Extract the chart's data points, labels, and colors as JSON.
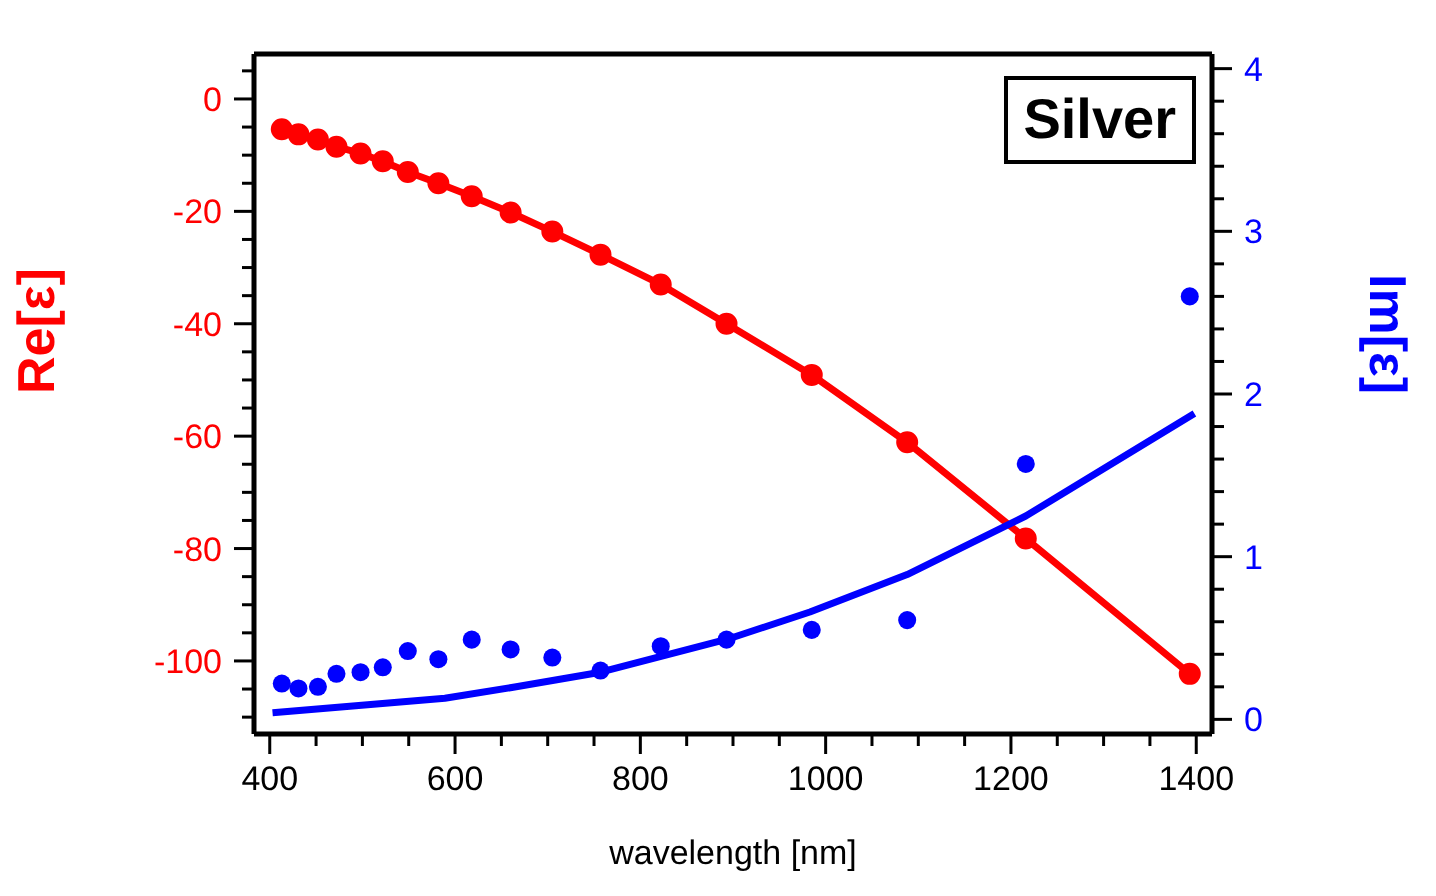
{
  "chart_data": {
    "type": "line",
    "xlabel": "wavelength [nm]",
    "ylabel": "Re[ε]",
    "y2label": "Im[ε]",
    "annotations": [
      "Silver"
    ],
    "xlim": [
      383,
      1417
    ],
    "ylim": [
      -113,
      8
    ],
    "y2lim": [
      -0.09,
      4.09
    ],
    "xticks": [
      400,
      {
        "value": 450,
        "label": null
      },
      {
        "value": 500,
        "label": null
      },
      {
        "value": 550,
        "label": null
      },
      600,
      {
        "value": 650,
        "label": null
      },
      {
        "value": 700,
        "label": null
      },
      {
        "value": 750,
        "label": null
      },
      800,
      {
        "value": 850,
        "label": null
      },
      {
        "value": 900,
        "label": null
      },
      {
        "value": 950,
        "label": null
      },
      1000,
      {
        "value": 1050,
        "label": null
      },
      {
        "value": 1100,
        "label": null
      },
      {
        "value": 1150,
        "label": null
      },
      1200,
      {
        "value": 1250,
        "label": null
      },
      {
        "value": 1300,
        "label": null
      },
      {
        "value": 1350,
        "label": null
      },
      1400
    ],
    "yticks": [
      {
        "value": 5,
        "label": null
      },
      0,
      {
        "value": -5,
        "label": null
      },
      {
        "value": -10,
        "label": null
      },
      {
        "value": -15,
        "label": null
      },
      -20,
      {
        "value": -25,
        "label": null
      },
      {
        "value": -30,
        "label": null
      },
      {
        "value": -35,
        "label": null
      },
      -40,
      {
        "value": -45,
        "label": null
      },
      {
        "value": -50,
        "label": null
      },
      {
        "value": -55,
        "label": null
      },
      -60,
      {
        "value": -65,
        "label": null
      },
      {
        "value": -70,
        "label": null
      },
      {
        "value": -75,
        "label": null
      },
      -80,
      {
        "value": -85,
        "label": null
      },
      {
        "value": -90,
        "label": null
      },
      {
        "value": -95,
        "label": null
      },
      -100,
      {
        "value": -105,
        "label": null
      },
      {
        "value": -110,
        "label": null
      }
    ],
    "y2ticks": [
      0,
      {
        "value": 0.2,
        "label": null
      },
      {
        "value": 0.4,
        "label": null
      },
      {
        "value": 0.6,
        "label": null
      },
      {
        "value": 0.8,
        "label": null
      },
      1,
      {
        "value": 1.2,
        "label": null
      },
      {
        "value": 1.4,
        "label": null
      },
      {
        "value": 1.6,
        "label": null
      },
      {
        "value": 1.8,
        "label": null
      },
      2,
      {
        "value": 2.2,
        "label": null
      },
      {
        "value": 2.4,
        "label": null
      },
      {
        "value": 2.6,
        "label": null
      },
      {
        "value": 2.8,
        "label": null
      },
      3,
      {
        "value": 3.2,
        "label": null
      },
      {
        "value": 3.4,
        "label": null
      },
      {
        "value": 3.6,
        "label": null
      },
      {
        "value": 3.8,
        "label": null
      },
      4
    ],
    "series": [
      {
        "marker": "circle",
        "color": "#ff0000",
        "x": [
          413,
          431,
          452,
          472,
          498,
          522,
          549,
          582,
          618,
          660,
          705,
          757,
          822,
          893,
          985,
          1088,
          1216,
          1393
        ],
        "values": [
          -5.4,
          -6.3,
          -7.2,
          -8.5,
          -9.7,
          -11.1,
          -13.0,
          -15.0,
          -17.3,
          -20.2,
          -23.6,
          -27.7,
          -33.0,
          -40.0,
          -49.1,
          -61.1,
          -78.2,
          -102.3
        ]
      },
      {
        "type": "scatter",
        "marker": "circle",
        "axis": "y2",
        "color": "#0000ff",
        "x": [
          413,
          431,
          452,
          472,
          498,
          522,
          549,
          582,
          618,
          660,
          705,
          757,
          822,
          893,
          985,
          1088,
          1216,
          1393
        ],
        "values": [
          0.22,
          0.19,
          0.2,
          0.28,
          0.29,
          0.32,
          0.42,
          0.37,
          0.49,
          0.43,
          0.38,
          0.3,
          0.45,
          0.49,
          0.55,
          0.61,
          1.57,
          2.6
        ]
      },
      {
        "type": "line",
        "marker": "none",
        "axis": "y2",
        "color": "#0000ff",
        "x": [
          403,
          589,
          666,
          757,
          898,
          983,
          1088,
          1216,
          1398
        ],
        "values": [
          0.04,
          0.13,
          0.2,
          0.29,
          0.5,
          0.66,
          0.89,
          1.25,
          1.88
        ]
      }
    ]
  }
}
